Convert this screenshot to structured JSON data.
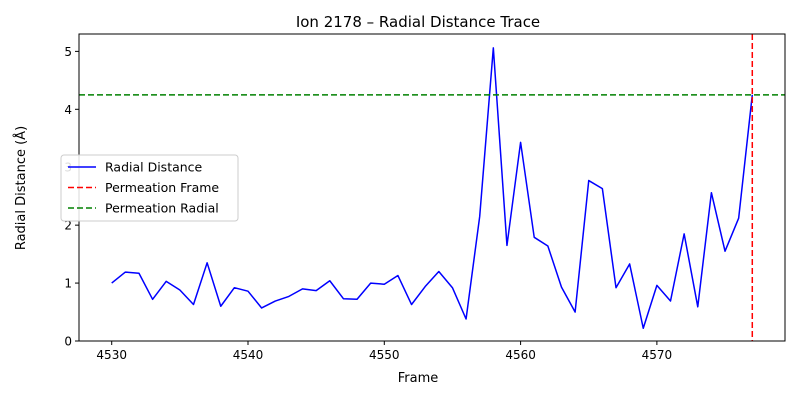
{
  "chart_data": {
    "type": "line",
    "title": "Ion 2178 – Radial Distance Trace",
    "xlabel": "Frame",
    "ylabel": "Radial Distance (Å)",
    "xlim": [
      4527.6,
      4579.4
    ],
    "ylim": [
      0,
      5.3
    ],
    "x_ticks": [
      4530,
      4540,
      4550,
      4560,
      4570
    ],
    "y_ticks": [
      0,
      1,
      2,
      3,
      4,
      5
    ],
    "grid": false,
    "legend_position": "center-left",
    "series": [
      {
        "name": "Radial Distance",
        "color": "#0000ff",
        "style": "solid",
        "x": [
          4530,
          4531,
          4532,
          4533,
          4534,
          4535,
          4536,
          4537,
          4538,
          4539,
          4540,
          4541,
          4542,
          4543,
          4544,
          4545,
          4546,
          4547,
          4548,
          4549,
          4550,
          4551,
          4552,
          4553,
          4554,
          4555,
          4556,
          4557,
          4558,
          4559,
          4560,
          4561,
          4562,
          4563,
          4564,
          4565,
          4566,
          4567,
          4568,
          4569,
          4570,
          4571,
          4572,
          4573,
          4574,
          4575,
          4576,
          4577
        ],
        "values": [
          1.0,
          1.19,
          1.17,
          0.72,
          1.03,
          0.88,
          0.63,
          1.35,
          0.6,
          0.92,
          0.86,
          0.57,
          0.69,
          0.77,
          0.9,
          0.87,
          1.04,
          0.73,
          0.72,
          1.0,
          0.98,
          1.13,
          0.63,
          0.94,
          1.2,
          0.92,
          0.38,
          2.15,
          5.06,
          1.65,
          3.43,
          1.79,
          1.64,
          0.93,
          0.5,
          2.77,
          2.63,
          0.92,
          1.33,
          0.22,
          0.96,
          0.69,
          1.85,
          0.59,
          2.56,
          1.55,
          2.12,
          4.25
        ]
      }
    ],
    "reference_lines": [
      {
        "name": "Permeation Frame",
        "orientation": "vertical",
        "value": 4577,
        "color": "#ff0000",
        "style": "dashed"
      },
      {
        "name": "Permeation Radial",
        "orientation": "horizontal",
        "value": 4.25,
        "color": "#008000",
        "style": "dashed"
      }
    ]
  }
}
